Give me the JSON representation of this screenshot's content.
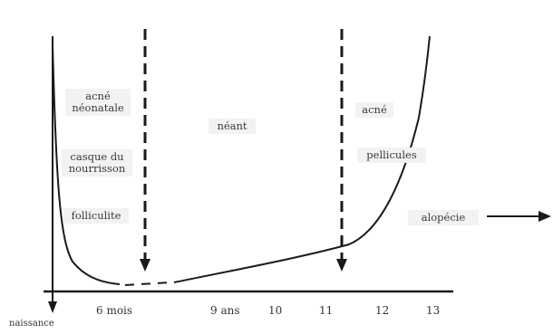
{
  "labels": {
    "acne_neonatale_1": "acné",
    "acne_neonatale_2": "néonatale",
    "casque_1": "casque du",
    "casque_2": "nourrisson",
    "folliculite": "folliculite",
    "neant": "néant",
    "acne": "acné",
    "pellicules": "pellicules",
    "alopecie": "alopécie"
  },
  "axis": {
    "naissance": "naissance",
    "six_mois": "6 mois",
    "nine_ans": "9 ans",
    "ten": "10",
    "eleven": "11",
    "twelve": "12",
    "thirteen": "13"
  },
  "colors": {
    "ink": "#1a1a1a",
    "label_bg": "#f2f2f2"
  }
}
